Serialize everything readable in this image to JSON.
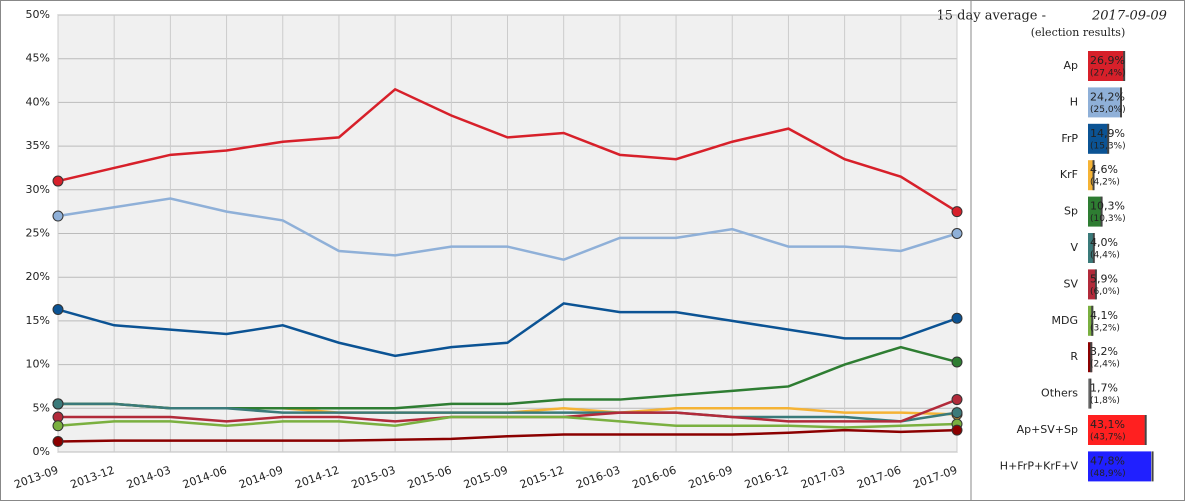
{
  "chart_data": [
    {
      "type": "line",
      "categories": [
        "2013-09",
        "2013-12",
        "2014-03",
        "2014-06",
        "2014-09",
        "2014-12",
        "2015-03",
        "2015-06",
        "2015-09",
        "2015-12",
        "2016-03",
        "2016-06",
        "2016-09",
        "2016-12",
        "2017-03",
        "2017-06",
        "2017-09"
      ],
      "ylim": [
        0,
        50
      ],
      "yticks": [
        {
          "value": 0,
          "label": "0%"
        },
        {
          "value": 5,
          "label": "5%"
        },
        {
          "value": 10,
          "label": "10%"
        },
        {
          "value": 15,
          "label": "15%"
        },
        {
          "value": 20,
          "label": "20%"
        },
        {
          "value": 25,
          "label": "25%"
        },
        {
          "value": 30,
          "label": "30%"
        },
        {
          "value": 35,
          "label": "35%"
        },
        {
          "value": 40,
          "label": "40%"
        },
        {
          "value": 45,
          "label": "45%"
        },
        {
          "value": 50,
          "label": "50%"
        }
      ],
      "grid": true,
      "series": [
        {
          "color": "#d7202a",
          "values": [
            31,
            32.5,
            34,
            34.5,
            35.5,
            36,
            41.5,
            38.5,
            36,
            36.5,
            34,
            33.5,
            35.5,
            37,
            33.5,
            31.5,
            27.5
          ]
        },
        {
          "color": "#8fb0d8",
          "values": [
            27,
            28,
            29,
            27.5,
            26.5,
            23,
            22.5,
            23.5,
            23.5,
            22,
            24.5,
            24.5,
            25.5,
            23.5,
            23.5,
            23,
            25
          ]
        },
        {
          "color": "#0b5394",
          "values": [
            16.3,
            14.5,
            14,
            13.5,
            14.5,
            12.5,
            11,
            12,
            12.5,
            17,
            16,
            16,
            15,
            14,
            13,
            13,
            15.3
          ]
        },
        {
          "color": "#f5b335",
          "values": [
            5.5,
            5.5,
            5,
            5,
            5,
            4.5,
            4.5,
            4.5,
            4.5,
            5,
            4.5,
            5,
            5,
            5,
            4.5,
            4.5,
            4.3
          ]
        },
        {
          "color": "#2e7d32",
          "values": [
            5.5,
            5.5,
            5,
            5,
            5,
            5,
            5,
            5.5,
            5.5,
            6,
            6,
            6.5,
            7,
            7.5,
            10,
            12,
            10.3
          ]
        },
        {
          "color": "#3a7a7a",
          "values": [
            5.5,
            5.5,
            5,
            5,
            4.5,
            4.5,
            4.5,
            4.5,
            4.5,
            4.5,
            4.5,
            4.5,
            4,
            4,
            4,
            3.5,
            4.5
          ]
        },
        {
          "color": "#b22a3a",
          "values": [
            4,
            4,
            4,
            3.5,
            4,
            4,
            3.5,
            4,
            4,
            4,
            4.5,
            4.5,
            4,
            3.5,
            3.5,
            3.5,
            6
          ]
        },
        {
          "color": "#7ab040",
          "values": [
            3,
            3.5,
            3.5,
            3,
            3.5,
            3.5,
            3,
            4,
            4,
            4,
            3.5,
            3,
            3,
            3,
            2.8,
            3,
            3.2
          ]
        },
        {
          "color": "#8b0000",
          "values": [
            1.2,
            1.3,
            1.3,
            1.3,
            1.3,
            1.3,
            1.4,
            1.5,
            1.8,
            2,
            2,
            2,
            2,
            2.2,
            2.5,
            2.3,
            2.5
          ]
        }
      ]
    },
    {
      "type": "hbar",
      "title": "15 day average -",
      "date": "2017-09-09",
      "subtitle": "(election results)",
      "xlim": [
        0,
        50
      ],
      "categories": [
        "Ap",
        "H",
        "FrP",
        "KrF",
        "Sp",
        "V",
        "SV",
        "MDG",
        "R",
        "Others",
        "Ap+SV+Sp",
        "H+FrP+KrF+V"
      ],
      "colors": [
        "#d7202a",
        "#8fb0d8",
        "#0b5394",
        "#f5b335",
        "#2e7d32",
        "#3a7a7a",
        "#b22a3a",
        "#7ab040",
        "#8b0000",
        "#999999",
        "#ff2020",
        "#2020ff"
      ],
      "values": [
        26.9,
        24.2,
        14.9,
        4.6,
        10.3,
        4.0,
        5.9,
        4.1,
        3.2,
        1.7,
        43.1,
        47.8
      ],
      "value_labels": [
        "26,9%",
        "24,2%",
        "14,9%",
        "4,6%",
        "10,3%",
        "4,0%",
        "5,9%",
        "4,1%",
        "3,2%",
        "1,7%",
        "43,1%",
        "47,8%"
      ],
      "election_values": [
        27.4,
        25.0,
        15.3,
        4.2,
        10.3,
        4.4,
        6.0,
        3.2,
        2.4,
        1.8,
        43.7,
        48.9
      ],
      "election_labels": [
        "(27,4%)",
        "(25,0%)",
        "(15,3%)",
        "(4,2%)",
        "(10,3%)",
        "(4,4%)",
        "(6,0%)",
        "(3,2%)",
        "(2,4%)",
        "(1,8%)",
        "(43,7%)",
        "(48,9%)"
      ]
    }
  ]
}
